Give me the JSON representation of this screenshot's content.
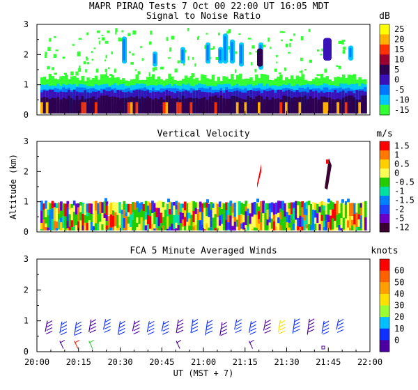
{
  "header": {
    "title": "MAPR PIRAQ Tests  7 Oct 00  22:00 UT  16:05  MDT"
  },
  "chart_data": [
    {
      "type": "heatmap",
      "title": "Signal to Noise Ratio",
      "unit": "dB",
      "ylim": [
        0,
        3
      ],
      "yticks": [
        "0",
        "1",
        "2",
        "3"
      ],
      "colorbar": {
        "labels": [
          "25",
          "20",
          "15",
          "10",
          "5",
          "0",
          "-5",
          "-10",
          "-15"
        ],
        "colors": [
          "#ffff00",
          "#ffb000",
          "#ff3000",
          "#9a0032",
          "#2e0050",
          "#3a10b8",
          "#0078ff",
          "#00c8ff",
          "#33ff33"
        ]
      }
    },
    {
      "type": "heatmap",
      "title": "Vertical Velocity",
      "unit": "m/s",
      "ylabel": "Altitude (km)",
      "ylim": [
        0,
        3
      ],
      "yticks": [
        "0",
        "1",
        "2",
        "3"
      ],
      "colorbar": {
        "labels": [
          "1.5",
          "1",
          "0.5",
          "0",
          "-0.5",
          "-1",
          "-1.5",
          "-2",
          "-5",
          "-12"
        ],
        "colors": [
          "#ff0000",
          "#ff7800",
          "#ffd000",
          "#ffff55",
          "#22cc00",
          "#00e0a0",
          "#0080ff",
          "#2040ff",
          "#6a00c8",
          "#3a0030"
        ]
      }
    },
    {
      "type": "barbs",
      "title": "FCA 5 Minute Averaged Winds",
      "unit": "knots",
      "ylim": [
        0,
        3
      ],
      "yticks": [
        "0",
        "1",
        "2",
        "3"
      ],
      "colorbar": {
        "labels": [
          "60",
          "50",
          "40",
          "30",
          "20",
          "10",
          "0"
        ],
        "colors": [
          "#ff0000",
          "#ff6000",
          "#ffa000",
          "#ffe000",
          "#99ff33",
          "#00c0ff",
          "#1030ff",
          "#4a00a0"
        ]
      },
      "xlabel": "UT  (MST + 7)",
      "xticks": [
        "20:00",
        "20:15",
        "20:30",
        "20:45",
        "21:00",
        "21:15",
        "21:30",
        "21:45",
        "22:00"
      ],
      "time_range": [
        "20:00",
        "22:00"
      ]
    }
  ]
}
